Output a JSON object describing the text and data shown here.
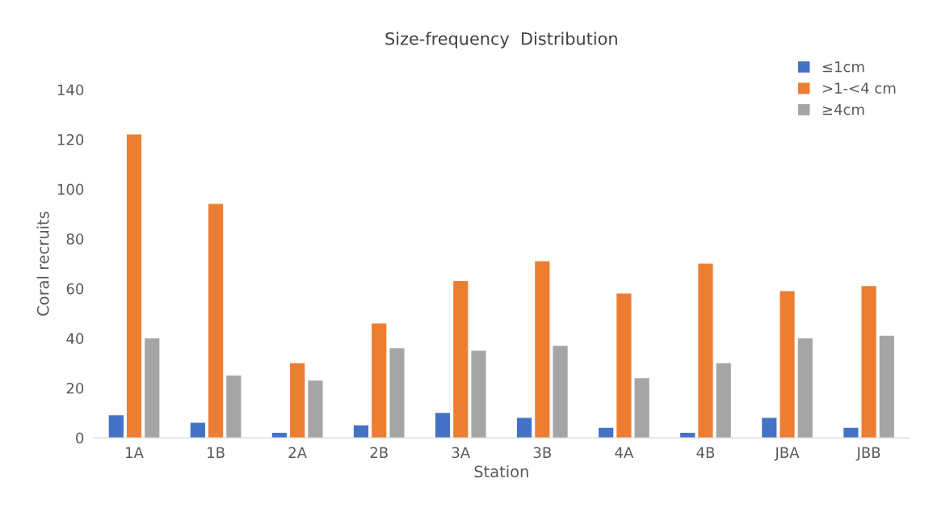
{
  "chart_data": {
    "type": "bar",
    "title": "Size-frequency  Distribution",
    "xlabel": "Station",
    "ylabel": "Coral recruits",
    "categories": [
      "1A",
      "1B",
      "2A",
      "2B",
      "3A",
      "3B",
      "4A",
      "4B",
      "JBA",
      "JBB"
    ],
    "series": [
      {
        "name": "≤1cm",
        "color": "#4472c4",
        "values": [
          9,
          6,
          2,
          5,
          10,
          8,
          4,
          2,
          8,
          4
        ]
      },
      {
        "name": ">1-<4 cm",
        "color": "#ed7d31",
        "values": [
          122,
          94,
          30,
          46,
          63,
          71,
          58,
          70,
          59,
          61
        ]
      },
      {
        "name": "≥4cm",
        "color": "#a5a5a5",
        "values": [
          40,
          25,
          23,
          36,
          35,
          37,
          24,
          30,
          40,
          41
        ]
      }
    ],
    "ylim": [
      0,
      140
    ],
    "yticks": [
      0,
      20,
      40,
      60,
      80,
      100,
      120,
      140
    ],
    "grid": false,
    "legend": "top right"
  }
}
